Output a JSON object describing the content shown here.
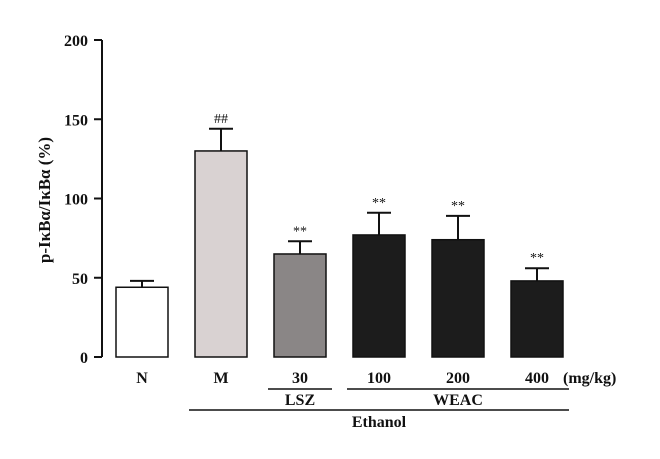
{
  "chart_data": {
    "type": "bar",
    "title": "",
    "xlabel": "",
    "ylabel": "p-IκBα/IκBα (%)",
    "ylim": [
      0,
      200
    ],
    "yticks": [
      0,
      50,
      100,
      150,
      200
    ],
    "grid": false,
    "categories": [
      "N",
      "M",
      "30",
      "100",
      "200",
      "400"
    ],
    "values": [
      44,
      130,
      65,
      77,
      74,
      48
    ],
    "error": [
      4,
      14,
      8,
      14,
      15,
      8
    ],
    "annotations": [
      "",
      "##",
      "**",
      "**",
      "**",
      "**"
    ],
    "bar_colors": [
      "#ffffff",
      "#d9d2d2",
      "#8a8686",
      "#1c1c1c",
      "#1c1c1c",
      "#1c1c1c"
    ],
    "dose_unit": "(mg/kg)",
    "groups": [
      {
        "label": "LSZ",
        "from": 2,
        "to": 2
      },
      {
        "label": "WEAC",
        "from": 3,
        "to": 5
      },
      {
        "label": "Ethanol",
        "from": 1,
        "to": 5
      }
    ]
  }
}
